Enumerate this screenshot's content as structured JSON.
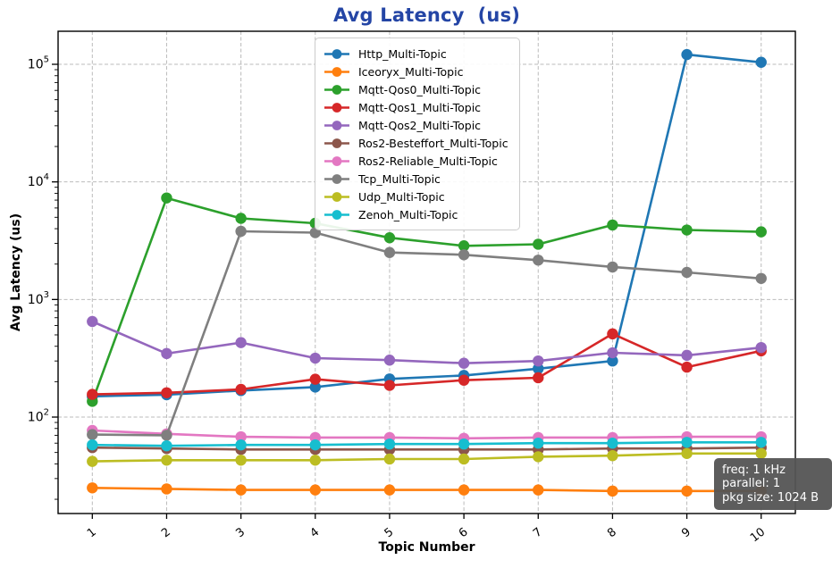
{
  "title": "Avg Latency  (us)",
  "title_color": "#2445a5",
  "x_axis": {
    "label": "Topic Number"
  },
  "y_axis": {
    "label": "Avg Latency (us)",
    "tick_base": "10",
    "tick_exponents": [
      2,
      3,
      4,
      5
    ]
  },
  "annotation": {
    "lines": [
      "freq: 1 kHz",
      "parallel: 1",
      "pkg size: 1024 B"
    ]
  },
  "chart_data": {
    "type": "line",
    "title": "Avg Latency  (us)",
    "xlabel": "Topic Number",
    "ylabel": "Avg Latency (us)",
    "x": [
      1,
      2,
      3,
      4,
      5,
      6,
      7,
      8,
      9,
      10
    ],
    "x_tick_labels": [
      "1",
      "2",
      "3",
      "4",
      "5",
      "6",
      "7",
      "8",
      "9",
      "10"
    ],
    "y_scale": "log",
    "ylim": [
      15,
      190000
    ],
    "y_tick_labels": [
      "10^2",
      "10^3",
      "10^4",
      "10^5"
    ],
    "grid": true,
    "grid_color": "#b0b0b0",
    "legend_position": "upper-center-left-inside",
    "marker": "o",
    "series": [
      {
        "name": "Http_Multi-Topic",
        "color": "#1f77b4",
        "values": [
          150,
          155,
          168,
          180,
          211,
          226,
          258,
          300,
          121000,
          104000
        ]
      },
      {
        "name": "Iceoryx_Multi-Topic",
        "color": "#ff7f0e",
        "values": [
          25,
          24.5,
          24,
          24,
          24,
          24,
          24,
          23.5,
          23.5,
          23.5
        ]
      },
      {
        "name": "Mqtt-Qos0_Multi-Topic",
        "color": "#2ca02c",
        "values": [
          136,
          7300,
          4900,
          4450,
          3350,
          2860,
          2950,
          4300,
          3900,
          3760
        ]
      },
      {
        "name": "Mqtt-Qos1_Multi-Topic",
        "color": "#d62728",
        "values": [
          156,
          161,
          172,
          210,
          186,
          206,
          216,
          510,
          266,
          366
        ]
      },
      {
        "name": "Mqtt-Qos2_Multi-Topic",
        "color": "#9467bd",
        "values": [
          650,
          347,
          430,
          317,
          305,
          287,
          300,
          352,
          335,
          390
        ]
      },
      {
        "name": "Ros2-Besteffort_Multi-Topic",
        "color": "#8c564b",
        "values": [
          55,
          54,
          53,
          53,
          53,
          53,
          53,
          54,
          54,
          55
        ]
      },
      {
        "name": "Ros2-Reliable_Multi-Topic",
        "color": "#e377c2",
        "values": [
          77,
          72,
          68,
          67,
          67,
          66,
          67,
          67,
          68,
          68
        ]
      },
      {
        "name": "Tcp_Multi-Topic",
        "color": "#7f7f7f",
        "values": [
          71,
          70,
          3800,
          3700,
          2510,
          2400,
          2160,
          1890,
          1700,
          1510
        ]
      },
      {
        "name": "Udp_Multi-Topic",
        "color": "#bcbd22",
        "values": [
          42,
          43,
          43,
          43,
          44,
          44,
          46,
          47,
          49,
          49
        ]
      },
      {
        "name": "Zenoh_Multi-Topic",
        "color": "#17becf",
        "values": [
          58,
          57,
          58,
          58,
          59,
          59,
          60,
          60,
          61,
          61
        ]
      }
    ]
  }
}
